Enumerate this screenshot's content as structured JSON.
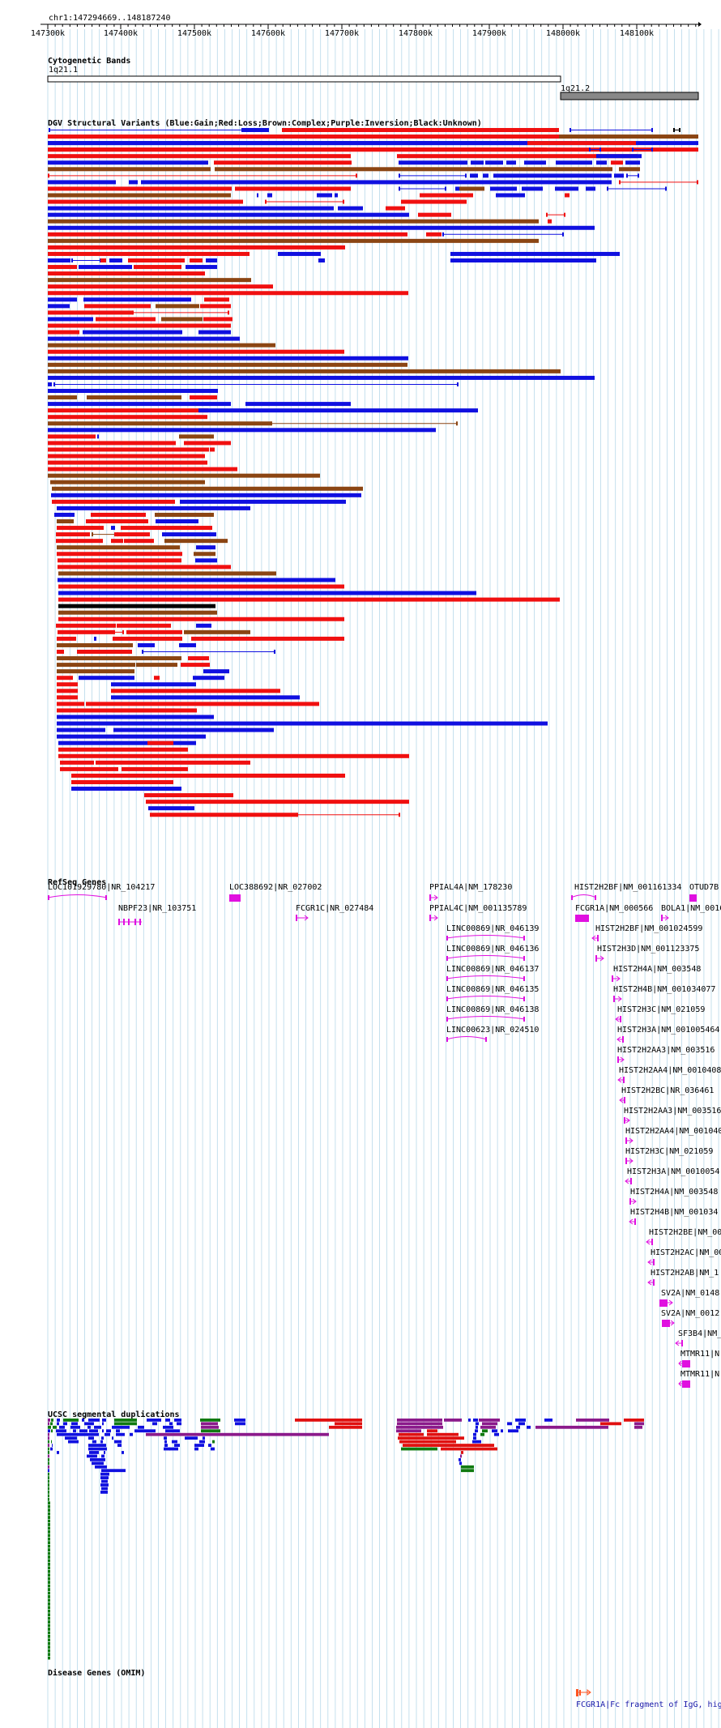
{
  "header": {
    "region": "chr1:147294669..148187240"
  },
  "ruler": {
    "ticks": [
      "147300k",
      "147400k",
      "147500k",
      "147600k",
      "147700k",
      "147800k",
      "147900k",
      "148000k",
      "148100k"
    ],
    "range": [
      147294669,
      148187240
    ]
  },
  "cytoband": {
    "title": "Cytogenetic Bands",
    "bands": [
      {
        "label": "1q21.1",
        "color": "#ffffff"
      },
      {
        "label": "1q21.2",
        "color": "#888888"
      }
    ]
  },
  "dgv": {
    "title": "DGV Structural Variants (Blue:Gain;Red:Loss;Brown:Complex;Purple:Inversion;Black:Unknown)",
    "colors": {
      "gain": "#1010e0",
      "loss": "#f01010",
      "complex": "#8b4513",
      "unknown": "#000000"
    }
  },
  "refseq": {
    "title": "RefSeq Genes",
    "genes": [
      "LOC101929780|NR_104217",
      "NBPF23|NR_103751",
      "LOC388692|NR_027002",
      "FCGR1C|NR_027484",
      "PPIAL4A|NM_178230",
      "PPIAL4C|NM_001135789",
      "LINC00869|NR_046139",
      "LINC00869|NR_046136",
      "LINC00869|NR_046137",
      "LINC00869|NR_046135",
      "LINC00869|NR_046138",
      "LINC00623|NR_024510",
      "HIST2H2BF|NM_001161334",
      "OTUD7B",
      "FCGR1A|NM_000566",
      "BOLA1|NM_0016",
      "HIST2H2BF|NM_001024599",
      "HIST2H3D|NM_001123375",
      "HIST2H4A|NM_003548",
      "HIST2H4B|NM_001034077",
      "HIST2H3C|NM_021059",
      "HIST2H3A|NM_001005464",
      "HIST2H2AA3|NM_003516",
      "HIST2H2AA4|NM_0010408",
      "HIST2H2BC|NR_036461",
      "HIST2H2AA3|NM_003516",
      "HIST2H2AA4|NM_001040",
      "HIST2H3C|NM_021059",
      "HIST2H3A|NM_0010054",
      "HIST2H4A|NM_003548",
      "HIST2H4B|NM_001034",
      "HIST2H2BE|NM_00",
      "HIST2H2AC|NM_00",
      "HIST2H2AB|NM_1",
      "SV2A|NM_0148",
      "SV2A|NM_0012",
      "SF3B4|NM_",
      "MTMR11|N",
      "MTMR11|N"
    ]
  },
  "segdup": {
    "title": "UCSC segmental duplications",
    "colors": {
      "red": "#e01010",
      "purple": "#8b1a8b",
      "blue": "#1010e0",
      "green": "#107a10",
      "gray": "#909090"
    }
  },
  "omim": {
    "title": "Disease Genes (OMIM)",
    "label": "FCGR1A|Fc fragment of IgG, hig"
  }
}
